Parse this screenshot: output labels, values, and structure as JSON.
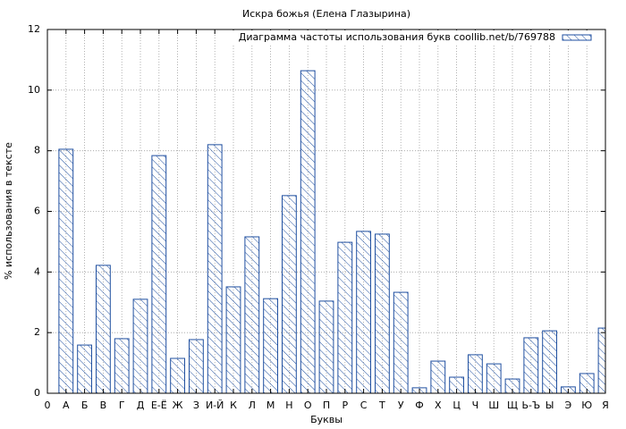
{
  "chart_data": {
    "type": "bar",
    "title": "Искра божья (Елена Глазырина)",
    "x_label": "Буквы",
    "y_label": "% использования в тексте",
    "categories": [
      "0",
      "А",
      "Б",
      "В",
      "Г",
      "Д",
      "Е-Ё",
      "Ж",
      "З",
      "И-Й",
      "К",
      "Л",
      "М",
      "Н",
      "О",
      "П",
      "Р",
      "С",
      "Т",
      "У",
      "Ф",
      "Х",
      "Ц",
      "Ч",
      "Ш",
      "Щ",
      "Ь-Ъ",
      "Ы",
      "Э",
      "Ю",
      "Я"
    ],
    "series": [
      {
        "name": "Диаграмма частоты использования букв coollib.net/b/769788",
        "color": "#1f4fa0",
        "values": [
          null,
          8.05,
          1.59,
          4.22,
          1.8,
          3.1,
          7.84,
          1.15,
          1.77,
          8.2,
          3.51,
          5.16,
          3.12,
          6.52,
          10.64,
          3.04,
          4.98,
          5.34,
          5.25,
          3.33,
          0.18,
          1.06,
          0.53,
          1.27,
          0.97,
          0.47,
          1.83,
          2.06,
          0.21,
          0.65,
          2.15
        ]
      }
    ],
    "ylim": [
      0,
      12
    ],
    "yticks": [
      0,
      2,
      4,
      6,
      8,
      10,
      12
    ],
    "grid": true,
    "legend": "top-right"
  }
}
